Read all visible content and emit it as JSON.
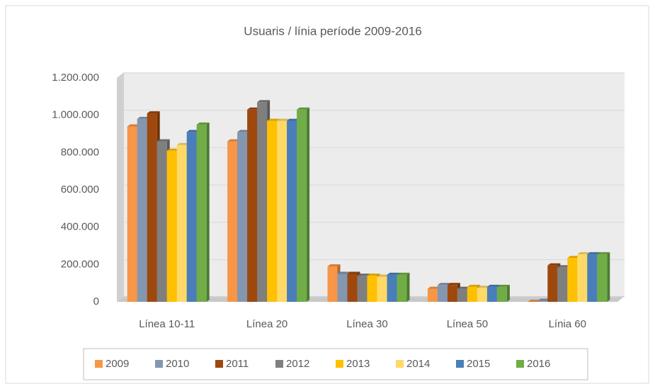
{
  "chart_data": {
    "type": "bar",
    "title": "Usuaris / línia període 2009-2016",
    "categories": [
      "Línea 10-11",
      "Línea 20",
      "Línea 30",
      "Línea 50",
      "Línia 60"
    ],
    "series": [
      {
        "name": "2009",
        "color": "#f79646",
        "values": [
          940000,
          860000,
          190000,
          70000,
          0
        ]
      },
      {
        "name": "2010",
        "color": "#8497b0",
        "values": [
          980000,
          910000,
          150000,
          90000,
          5000
        ]
      },
      {
        "name": "2011",
        "color": "#9e480e",
        "values": [
          1010000,
          1030000,
          150000,
          90000,
          195000
        ]
      },
      {
        "name": "2012",
        "color": "#7f7f7f",
        "values": [
          860000,
          1070000,
          140000,
          70000,
          185000
        ]
      },
      {
        "name": "2013",
        "color": "#ffc000",
        "values": [
          810000,
          970000,
          140000,
          80000,
          235000
        ]
      },
      {
        "name": "2014",
        "color": "#ffd966",
        "values": [
          840000,
          970000,
          135000,
          75000,
          255000
        ]
      },
      {
        "name": "2015",
        "color": "#4a7ebb",
        "values": [
          910000,
          970000,
          145000,
          80000,
          255000
        ]
      },
      {
        "name": "2016",
        "color": "#70ad47",
        "values": [
          950000,
          1030000,
          145000,
          80000,
          255000
        ]
      }
    ],
    "ylim": [
      0,
      1200000
    ],
    "yticks": [
      0,
      {
        "value": 200000,
        "label": "200.000"
      },
      {
        "value": 400000,
        "label": "400.000"
      },
      {
        "value": 600000,
        "label": "600.000"
      },
      {
        "value": 800000,
        "label": "800.000"
      },
      {
        "value": 1000000,
        "label": "1.000.000"
      },
      {
        "value": 1200000,
        "label": "1.200.000"
      }
    ],
    "grid": true,
    "legend": "bottom"
  }
}
